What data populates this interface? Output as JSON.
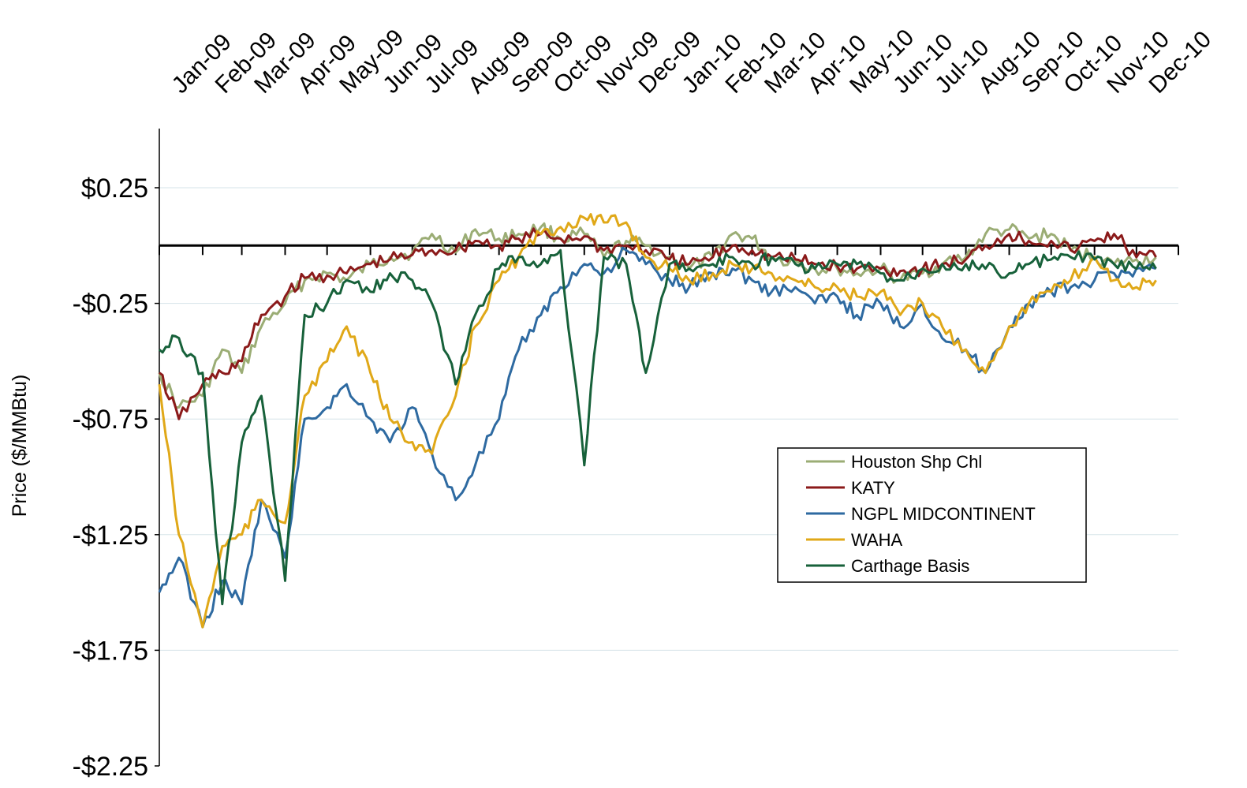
{
  "chart_data": {
    "type": "line",
    "title": "",
    "xlabel": "",
    "ylabel": "Price ($/MMBtu)",
    "ylim": [
      -2.25,
      0.5
    ],
    "yticks": [
      0.25,
      -0.25,
      -0.75,
      -1.25,
      -1.75,
      -2.25
    ],
    "ytick_labels": [
      "$0.25",
      "-$0.25",
      "-$0.75",
      "-$1.25",
      "-$1.75",
      "-$2.25"
    ],
    "x_range": [
      "2009-01",
      "2010-12"
    ],
    "x_tick_labels": [
      "Jan-09",
      "Feb-09",
      "Mar-09",
      "Apr-09",
      "May-09",
      "Jun-09",
      "Jul-09",
      "Aug-09",
      "Sep-09",
      "Oct-09",
      "Nov-09",
      "Dec-09",
      "Jan-10",
      "Feb-10",
      "Mar-10",
      "Apr-10",
      "May-10",
      "Jun-10",
      "Jul-10",
      "Aug-10",
      "Sep-10",
      "Oct-10",
      "Nov-10",
      "Dec-10"
    ],
    "grid": true,
    "zero_line": true,
    "legend_position": "center-right",
    "series": [
      {
        "name": "Houston Shp Chl",
        "color": "#9bad75",
        "points": [
          [
            "2009-01-01",
            -0.55
          ],
          [
            "2009-01-15",
            -0.7
          ],
          [
            "2009-02-01",
            -0.65
          ],
          [
            "2009-02-15",
            -0.45
          ],
          [
            "2009-03-01",
            -0.55
          ],
          [
            "2009-03-15",
            -0.35
          ],
          [
            "2009-04-01",
            -0.25
          ],
          [
            "2009-04-15",
            -0.15
          ],
          [
            "2009-05-01",
            -0.12
          ],
          [
            "2009-05-15",
            -0.15
          ],
          [
            "2009-06-01",
            -0.08
          ],
          [
            "2009-06-15",
            -0.05
          ],
          [
            "2009-07-01",
            -0.03
          ],
          [
            "2009-07-15",
            0.05
          ],
          [
            "2009-08-01",
            -0.03
          ],
          [
            "2009-08-15",
            0.07
          ],
          [
            "2009-09-01",
            0.03
          ],
          [
            "2009-09-15",
            0.05
          ],
          [
            "2009-10-01",
            0.08
          ],
          [
            "2009-10-15",
            0.03
          ],
          [
            "2009-11-01",
            0.05
          ],
          [
            "2009-11-15",
            -0.05
          ],
          [
            "2009-12-01",
            0.02
          ],
          [
            "2009-12-15",
            0.0
          ],
          [
            "2010-01-01",
            -0.05
          ],
          [
            "2010-01-15",
            -0.1
          ],
          [
            "2010-02-01",
            -0.05
          ],
          [
            "2010-02-15",
            0.05
          ],
          [
            "2010-03-01",
            0.03
          ],
          [
            "2010-03-15",
            -0.05
          ],
          [
            "2010-04-01",
            -0.07
          ],
          [
            "2010-04-15",
            -0.1
          ],
          [
            "2010-05-01",
            -0.1
          ],
          [
            "2010-05-15",
            -0.12
          ],
          [
            "2010-06-01",
            -0.1
          ],
          [
            "2010-06-15",
            -0.15
          ],
          [
            "2010-07-01",
            -0.12
          ],
          [
            "2010-07-15",
            -0.08
          ],
          [
            "2010-08-01",
            -0.05
          ],
          [
            "2010-08-15",
            0.05
          ],
          [
            "2010-09-01",
            0.07
          ],
          [
            "2010-09-15",
            0.03
          ],
          [
            "2010-10-01",
            0.05
          ],
          [
            "2010-10-15",
            -0.02
          ],
          [
            "2010-11-01",
            -0.05
          ],
          [
            "2010-11-15",
            -0.08
          ],
          [
            "2010-12-01",
            -0.06
          ],
          [
            "2010-12-15",
            -0.05
          ]
        ]
      },
      {
        "name": "KATY",
        "color": "#8b1a1a",
        "points": [
          [
            "2009-01-01",
            -0.55
          ],
          [
            "2009-01-15",
            -0.75
          ],
          [
            "2009-02-01",
            -0.6
          ],
          [
            "2009-02-15",
            -0.55
          ],
          [
            "2009-03-01",
            -0.5
          ],
          [
            "2009-03-15",
            -0.3
          ],
          [
            "2009-04-01",
            -0.22
          ],
          [
            "2009-04-15",
            -0.14
          ],
          [
            "2009-05-01",
            -0.13
          ],
          [
            "2009-05-15",
            -0.12
          ],
          [
            "2009-06-01",
            -0.08
          ],
          [
            "2009-06-15",
            -0.06
          ],
          [
            "2009-07-01",
            -0.04
          ],
          [
            "2009-07-15",
            -0.02
          ],
          [
            "2009-08-01",
            -0.02
          ],
          [
            "2009-08-15",
            0.02
          ],
          [
            "2009-09-01",
            0.0
          ],
          [
            "2009-09-15",
            0.03
          ],
          [
            "2009-10-01",
            0.05
          ],
          [
            "2009-10-15",
            0.03
          ],
          [
            "2009-11-01",
            0.04
          ],
          [
            "2009-11-15",
            -0.02
          ],
          [
            "2009-12-01",
            0.0
          ],
          [
            "2009-12-15",
            -0.02
          ],
          [
            "2010-01-01",
            -0.06
          ],
          [
            "2010-01-15",
            -0.08
          ],
          [
            "2010-02-01",
            -0.05
          ],
          [
            "2010-02-15",
            0.0
          ],
          [
            "2010-03-01",
            -0.02
          ],
          [
            "2010-03-15",
            -0.05
          ],
          [
            "2010-04-01",
            -0.06
          ],
          [
            "2010-04-15",
            -0.08
          ],
          [
            "2010-05-01",
            -0.09
          ],
          [
            "2010-05-15",
            -0.1
          ],
          [
            "2010-06-01",
            -0.1
          ],
          [
            "2010-06-15",
            -0.11
          ],
          [
            "2010-07-01",
            -0.1
          ],
          [
            "2010-07-15",
            -0.08
          ],
          [
            "2010-08-01",
            -0.06
          ],
          [
            "2010-08-15",
            0.0
          ],
          [
            "2010-09-01",
            0.05
          ],
          [
            "2010-09-15",
            0.02
          ],
          [
            "2010-10-01",
            0.02
          ],
          [
            "2010-10-15",
            -0.02
          ],
          [
            "2010-11-01",
            0.02
          ],
          [
            "2010-11-15",
            0.05
          ],
          [
            "2010-12-01",
            -0.05
          ],
          [
            "2010-12-15",
            -0.05
          ]
        ]
      },
      {
        "name": "NGPL MIDCONTINENT",
        "color": "#2e6aa1",
        "points": [
          [
            "2009-01-01",
            -1.5
          ],
          [
            "2009-01-15",
            -1.35
          ],
          [
            "2009-02-01",
            -1.65
          ],
          [
            "2009-02-15",
            -1.45
          ],
          [
            "2009-03-01",
            -1.55
          ],
          [
            "2009-03-15",
            -1.1
          ],
          [
            "2009-04-01",
            -1.35
          ],
          [
            "2009-04-15",
            -0.75
          ],
          [
            "2009-05-01",
            -0.7
          ],
          [
            "2009-05-15",
            -0.6
          ],
          [
            "2009-06-01",
            -0.75
          ],
          [
            "2009-06-15",
            -0.85
          ],
          [
            "2009-07-01",
            -0.7
          ],
          [
            "2009-07-15",
            -0.9
          ],
          [
            "2009-08-01",
            -1.1
          ],
          [
            "2009-08-15",
            -0.95
          ],
          [
            "2009-09-01",
            -0.75
          ],
          [
            "2009-09-15",
            -0.45
          ],
          [
            "2009-10-01",
            -0.3
          ],
          [
            "2009-10-15",
            -0.18
          ],
          [
            "2009-11-01",
            -0.08
          ],
          [
            "2009-11-15",
            -0.12
          ],
          [
            "2009-12-01",
            -0.02
          ],
          [
            "2009-12-15",
            -0.08
          ],
          [
            "2010-01-01",
            -0.15
          ],
          [
            "2010-01-15",
            -0.18
          ],
          [
            "2010-02-01",
            -0.12
          ],
          [
            "2010-02-15",
            -0.1
          ],
          [
            "2010-03-01",
            -0.15
          ],
          [
            "2010-03-15",
            -0.2
          ],
          [
            "2010-04-01",
            -0.18
          ],
          [
            "2010-04-15",
            -0.25
          ],
          [
            "2010-05-01",
            -0.22
          ],
          [
            "2010-05-15",
            -0.3
          ],
          [
            "2010-06-01",
            -0.25
          ],
          [
            "2010-06-15",
            -0.35
          ],
          [
            "2010-07-01",
            -0.25
          ],
          [
            "2010-07-15",
            -0.4
          ],
          [
            "2010-08-01",
            -0.45
          ],
          [
            "2010-08-15",
            -0.55
          ],
          [
            "2010-09-01",
            -0.35
          ],
          [
            "2010-09-15",
            -0.25
          ],
          [
            "2010-10-01",
            -0.2
          ],
          [
            "2010-10-15",
            -0.18
          ],
          [
            "2010-11-01",
            -0.15
          ],
          [
            "2010-11-15",
            -0.12
          ],
          [
            "2010-12-01",
            -0.1
          ],
          [
            "2010-12-15",
            -0.1
          ]
        ]
      },
      {
        "name": "WAHA",
        "color": "#e0a818",
        "points": [
          [
            "2009-01-01",
            -0.6
          ],
          [
            "2009-01-15",
            -1.25
          ],
          [
            "2009-02-01",
            -1.65
          ],
          [
            "2009-02-15",
            -1.3
          ],
          [
            "2009-03-01",
            -1.25
          ],
          [
            "2009-03-15",
            -1.1
          ],
          [
            "2009-04-01",
            -1.2
          ],
          [
            "2009-04-15",
            -0.65
          ],
          [
            "2009-05-01",
            -0.5
          ],
          [
            "2009-05-15",
            -0.35
          ],
          [
            "2009-06-01",
            -0.55
          ],
          [
            "2009-06-15",
            -0.75
          ],
          [
            "2009-07-01",
            -0.85
          ],
          [
            "2009-07-15",
            -0.9
          ],
          [
            "2009-08-01",
            -0.65
          ],
          [
            "2009-08-15",
            -0.35
          ],
          [
            "2009-09-01",
            -0.15
          ],
          [
            "2009-09-15",
            -0.05
          ],
          [
            "2009-10-01",
            0.05
          ],
          [
            "2009-10-15",
            0.08
          ],
          [
            "2009-11-01",
            0.12
          ],
          [
            "2009-11-15",
            0.1
          ],
          [
            "2009-12-01",
            0.1
          ],
          [
            "2009-12-15",
            -0.05
          ],
          [
            "2010-01-01",
            -0.1
          ],
          [
            "2010-01-15",
            -0.15
          ],
          [
            "2010-02-01",
            -0.12
          ],
          [
            "2010-02-15",
            -0.08
          ],
          [
            "2010-03-01",
            -0.1
          ],
          [
            "2010-03-15",
            -0.12
          ],
          [
            "2010-04-01",
            -0.15
          ],
          [
            "2010-04-15",
            -0.18
          ],
          [
            "2010-05-01",
            -0.18
          ],
          [
            "2010-05-15",
            -0.22
          ],
          [
            "2010-06-01",
            -0.2
          ],
          [
            "2010-06-15",
            -0.3
          ],
          [
            "2010-07-01",
            -0.25
          ],
          [
            "2010-07-15",
            -0.35
          ],
          [
            "2010-08-01",
            -0.45
          ],
          [
            "2010-08-15",
            -0.55
          ],
          [
            "2010-09-01",
            -0.35
          ],
          [
            "2010-09-15",
            -0.25
          ],
          [
            "2010-10-01",
            -0.2
          ],
          [
            "2010-10-15",
            -0.15
          ],
          [
            "2010-11-01",
            -0.05
          ],
          [
            "2010-11-15",
            -0.15
          ],
          [
            "2010-12-01",
            -0.18
          ],
          [
            "2010-12-15",
            -0.15
          ]
        ]
      },
      {
        "name": "Carthage Basis",
        "color": "#17613a",
        "points": [
          [
            "2009-01-01",
            -0.45
          ],
          [
            "2009-01-15",
            -0.4
          ],
          [
            "2009-02-01",
            -0.55
          ],
          [
            "2009-02-15",
            -1.55
          ],
          [
            "2009-03-01",
            -0.85
          ],
          [
            "2009-03-15",
            -0.65
          ],
          [
            "2009-04-01",
            -1.45
          ],
          [
            "2009-04-15",
            -0.3
          ],
          [
            "2009-05-01",
            -0.25
          ],
          [
            "2009-05-15",
            -0.15
          ],
          [
            "2009-06-01",
            -0.2
          ],
          [
            "2009-06-15",
            -0.12
          ],
          [
            "2009-07-01",
            -0.15
          ],
          [
            "2009-07-15",
            -0.25
          ],
          [
            "2009-08-01",
            -0.6
          ],
          [
            "2009-08-15",
            -0.3
          ],
          [
            "2009-09-01",
            -0.1
          ],
          [
            "2009-09-15",
            -0.05
          ],
          [
            "2009-10-01",
            -0.08
          ],
          [
            "2009-10-15",
            -0.02
          ],
          [
            "2009-11-01",
            -0.95
          ],
          [
            "2009-11-15",
            -0.05
          ],
          [
            "2009-12-01",
            -0.08
          ],
          [
            "2009-12-15",
            -0.55
          ],
          [
            "2010-01-01",
            -0.08
          ],
          [
            "2010-01-15",
            -0.1
          ],
          [
            "2010-02-01",
            -0.08
          ],
          [
            "2010-02-15",
            -0.05
          ],
          [
            "2010-03-01",
            -0.08
          ],
          [
            "2010-03-15",
            -0.05
          ],
          [
            "2010-04-01",
            -0.08
          ],
          [
            "2010-04-15",
            -0.1
          ],
          [
            "2010-05-01",
            -0.08
          ],
          [
            "2010-05-15",
            -0.08
          ],
          [
            "2010-06-01",
            -0.12
          ],
          [
            "2010-06-15",
            -0.15
          ],
          [
            "2010-07-01",
            -0.1
          ],
          [
            "2010-07-15",
            -0.08
          ],
          [
            "2010-08-01",
            -0.08
          ],
          [
            "2010-08-15",
            -0.1
          ],
          [
            "2010-09-01",
            -0.12
          ],
          [
            "2010-09-15",
            -0.08
          ],
          [
            "2010-10-01",
            -0.06
          ],
          [
            "2010-10-15",
            -0.05
          ],
          [
            "2010-11-01",
            -0.06
          ],
          [
            "2010-11-15",
            -0.08
          ],
          [
            "2010-12-01",
            -0.1
          ],
          [
            "2010-12-15",
            -0.1
          ]
        ]
      }
    ]
  }
}
